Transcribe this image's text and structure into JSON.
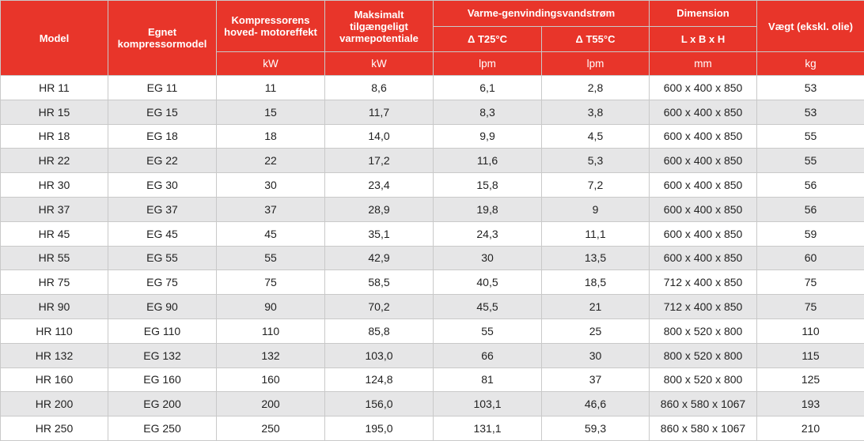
{
  "headers": {
    "model": "Model",
    "compressor": "Egnet kompressormodel",
    "motor_power": "Kompressorens hoved- motoreffekt",
    "max_heat": "Maksimalt tilgængeligt varmepotentiale",
    "water_flow": "Varme-genvindingsvandstrøm",
    "dt25": "Δ T25°C",
    "dt55": "Δ T55°C",
    "dimension": "Dimension",
    "dimension_sub": "L x B x H",
    "weight": "Vægt (ekskl. olie)"
  },
  "units": {
    "motor_power": "kW",
    "max_heat": "kW",
    "dt25": "lpm",
    "dt55": "lpm",
    "dimension": "mm",
    "weight": "kg"
  },
  "colors": {
    "header_bg": "#e8352a",
    "header_text": "#ffffff",
    "stripe": "#e6e6e7",
    "border": "#c9c9c9"
  },
  "rows": [
    {
      "model": "HR 11",
      "compressor": "EG 11",
      "power": "11",
      "heat": "8,6",
      "dt25": "6,1",
      "dt55": "2,8",
      "dim": "600 x 400 x 850",
      "weight": "53"
    },
    {
      "model": "HR 15",
      "compressor": "EG 15",
      "power": "15",
      "heat": "11,7",
      "dt25": "8,3",
      "dt55": "3,8",
      "dim": "600 x 400 x 850",
      "weight": "53"
    },
    {
      "model": "HR 18",
      "compressor": "EG 18",
      "power": "18",
      "heat": "14,0",
      "dt25": "9,9",
      "dt55": "4,5",
      "dim": "600 x 400 x 850",
      "weight": "55"
    },
    {
      "model": "HR 22",
      "compressor": "EG 22",
      "power": "22",
      "heat": "17,2",
      "dt25": "11,6",
      "dt55": "5,3",
      "dim": "600 x 400 x 850",
      "weight": "55"
    },
    {
      "model": "HR 30",
      "compressor": "EG 30",
      "power": "30",
      "heat": "23,4",
      "dt25": "15,8",
      "dt55": "7,2",
      "dim": "600 x 400 x 850",
      "weight": "56"
    },
    {
      "model": "HR 37",
      "compressor": "EG 37",
      "power": "37",
      "heat": "28,9",
      "dt25": "19,8",
      "dt55": "9",
      "dim": "600 x 400 x 850",
      "weight": "56"
    },
    {
      "model": "HR 45",
      "compressor": "EG 45",
      "power": "45",
      "heat": "35,1",
      "dt25": "24,3",
      "dt55": "11,1",
      "dim": "600 x 400 x 850",
      "weight": "59"
    },
    {
      "model": "HR 55",
      "compressor": "EG 55",
      "power": "55",
      "heat": "42,9",
      "dt25": "30",
      "dt55": "13,5",
      "dim": "600 x 400 x 850",
      "weight": "60"
    },
    {
      "model": "HR 75",
      "compressor": "EG 75",
      "power": "75",
      "heat": "58,5",
      "dt25": "40,5",
      "dt55": "18,5",
      "dim": "712 x 400 x 850",
      "weight": "75"
    },
    {
      "model": "HR 90",
      "compressor": "EG 90",
      "power": "90",
      "heat": "70,2",
      "dt25": "45,5",
      "dt55": "21",
      "dim": "712 x 400 x 850",
      "weight": "75"
    },
    {
      "model": "HR 110",
      "compressor": "EG 110",
      "power": "110",
      "heat": "85,8",
      "dt25": "55",
      "dt55": "25",
      "dim": "800 x 520 x 800",
      "weight": "110"
    },
    {
      "model": "HR 132",
      "compressor": "EG 132",
      "power": "132",
      "heat": "103,0",
      "dt25": "66",
      "dt55": "30",
      "dim": "800 x 520 x 800",
      "weight": "115"
    },
    {
      "model": "HR 160",
      "compressor": "EG 160",
      "power": "160",
      "heat": "124,8",
      "dt25": "81",
      "dt55": "37",
      "dim": "800 x 520 x 800",
      "weight": "125"
    },
    {
      "model": "HR 200",
      "compressor": "EG 200",
      "power": "200",
      "heat": "156,0",
      "dt25": "103,1",
      "dt55": "46,6",
      "dim": "860 x 580 x 1067",
      "weight": "193"
    },
    {
      "model": "HR 250",
      "compressor": "EG 250",
      "power": "250",
      "heat": "195,0",
      "dt25": "131,1",
      "dt55": "59,3",
      "dim": "860 x 580 x 1067",
      "weight": "210"
    }
  ]
}
